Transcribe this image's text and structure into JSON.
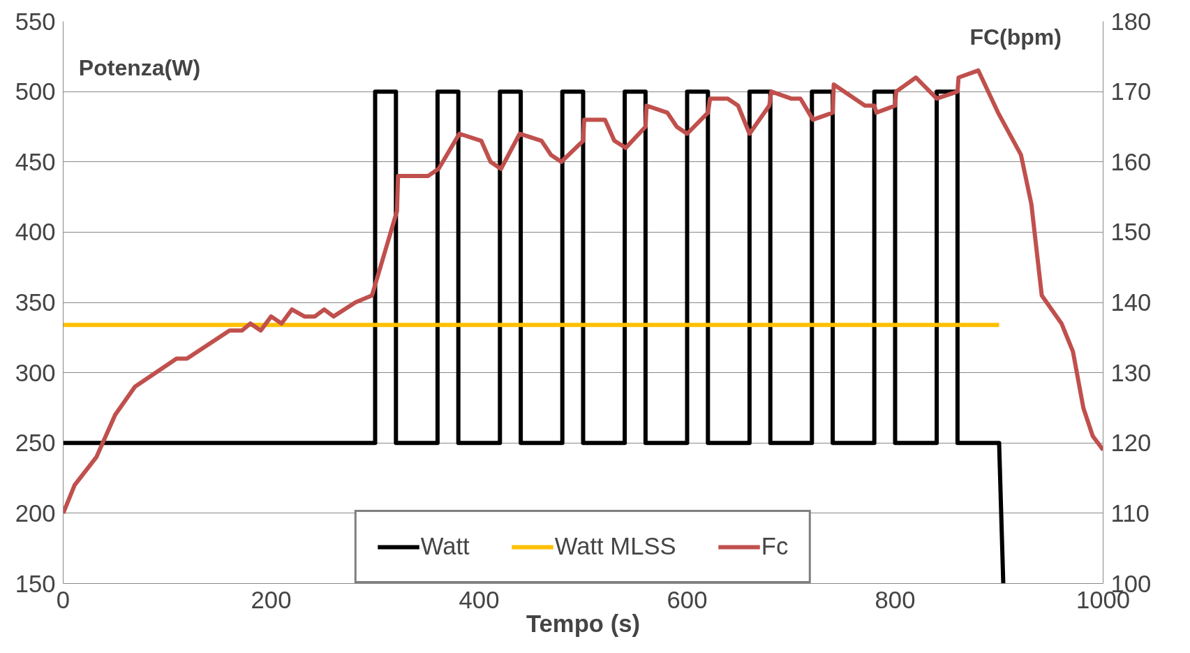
{
  "chart_data": {
    "type": "line",
    "xlabel": "Tempo (s)",
    "ylabel": "Potenza(W)",
    "y2label": "FC(bpm)",
    "xlim": [
      0,
      1000
    ],
    "xticks": [
      0,
      200,
      400,
      600,
      800,
      1000
    ],
    "ylim": [
      150,
      550
    ],
    "yticks": [
      150,
      200,
      250,
      300,
      350,
      400,
      450,
      500,
      550
    ],
    "y2lim": [
      100,
      180
    ],
    "y2ticks": [
      100,
      110,
      120,
      130,
      140,
      150,
      160,
      170,
      180
    ],
    "grid": "y",
    "legend": "bottom",
    "line_style": "solid",
    "marker": "none",
    "series": [
      {
        "name": "Watt",
        "color": "#000000",
        "x": [
          0,
          300,
          300,
          320,
          320,
          360,
          360,
          380,
          380,
          420,
          420,
          440,
          440,
          480,
          480,
          500,
          500,
          540,
          540,
          560,
          560,
          600,
          600,
          620,
          620,
          660,
          660,
          680,
          680,
          720,
          720,
          740,
          740,
          780,
          780,
          800,
          800,
          840,
          840,
          860,
          860,
          900,
          904
        ],
        "values": [
          250,
          250,
          500,
          500,
          250,
          250,
          500,
          500,
          250,
          250,
          500,
          500,
          250,
          250,
          500,
          500,
          250,
          250,
          500,
          500,
          250,
          250,
          500,
          500,
          250,
          250,
          500,
          500,
          250,
          250,
          500,
          500,
          250,
          250,
          500,
          500,
          250,
          250,
          500,
          500,
          250,
          250,
          150
        ]
      },
      {
        "name": "Watt MLSS",
        "color": "#ffc000",
        "x": [
          0,
          900
        ],
        "values": [
          334,
          334
        ]
      },
      {
        "name": "Fc",
        "color": "#c0504d",
        "axis": "y2",
        "x": [
          0,
          11,
          32,
          50,
          69,
          109,
          119,
          160,
          172,
          180,
          190,
          200,
          210,
          220,
          232,
          242,
          251,
          260,
          281,
          297,
          311,
          321,
          322,
          351,
          361,
          381,
          402,
          411,
          421,
          439,
          460,
          469,
          479,
          500,
          501,
          521,
          530,
          541,
          560,
          561,
          581,
          590,
          600,
          620,
          622,
          639,
          649,
          660,
          679,
          681,
          700,
          709,
          721,
          740,
          741,
          771,
          780,
          782,
          800,
          801,
          820,
          840,
          860,
          861,
          880,
          899,
          921,
          931,
          941,
          960,
          971,
          981,
          990,
          1000
        ],
        "values": [
          110,
          114,
          118,
          124,
          128,
          132,
          132,
          136,
          136,
          137,
          136,
          138,
          137,
          139,
          138,
          138,
          139,
          138,
          140,
          141,
          148,
          153,
          158,
          158,
          159,
          164,
          163,
          160,
          159,
          164,
          163,
          161,
          160,
          163,
          166,
          166,
          163,
          162,
          165,
          168,
          167,
          165,
          164,
          167,
          169,
          169,
          168,
          164,
          168,
          170,
          169,
          169,
          166,
          167,
          171,
          168,
          168,
          167,
          168,
          170,
          172,
          169,
          170,
          172,
          173,
          167,
          161,
          154,
          141,
          137,
          133,
          125,
          121,
          119
        ]
      }
    ]
  }
}
